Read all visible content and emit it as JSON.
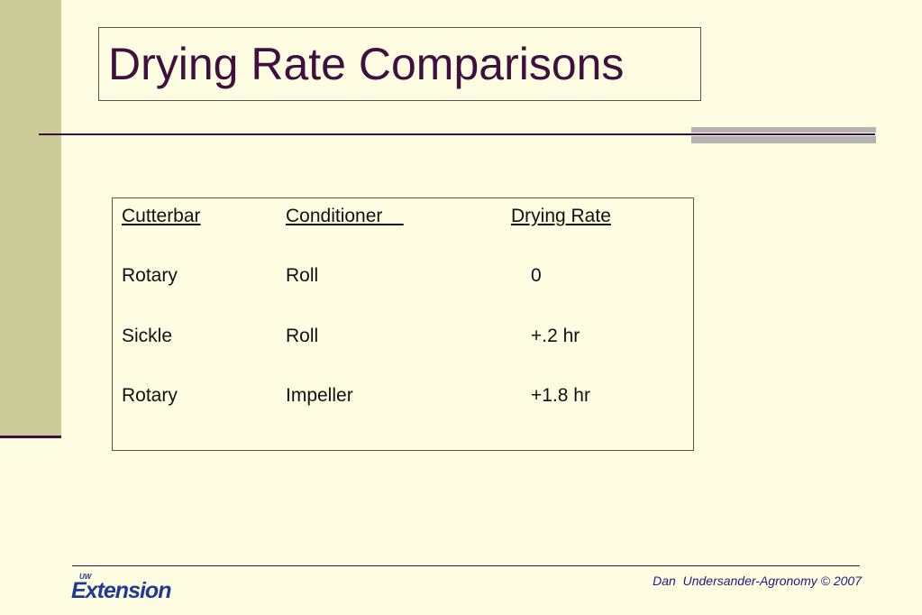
{
  "slide": {
    "title": "Drying Rate Comparisons"
  },
  "table": {
    "headers": [
      "Cutterbar",
      "Conditioner    ",
      "Drying Rate"
    ],
    "rows": [
      [
        "Rotary",
        "Roll",
        "0"
      ],
      [
        "Sickle",
        "Roll",
        "+.2 hr"
      ],
      [
        "Rotary",
        "Impeller",
        "+1.8 hr"
      ]
    ]
  },
  "footer": {
    "credit": "Dan  Undersander-Agronomy © 2007",
    "logo_small": "UW",
    "logo_main": "Extension"
  },
  "colors": {
    "background": "#FFFDE1",
    "side_bar": "#CCCC99",
    "title_text": "#3F0F3F",
    "footer_text": "#1A1A80",
    "logo_blue": "#1F3A93"
  }
}
